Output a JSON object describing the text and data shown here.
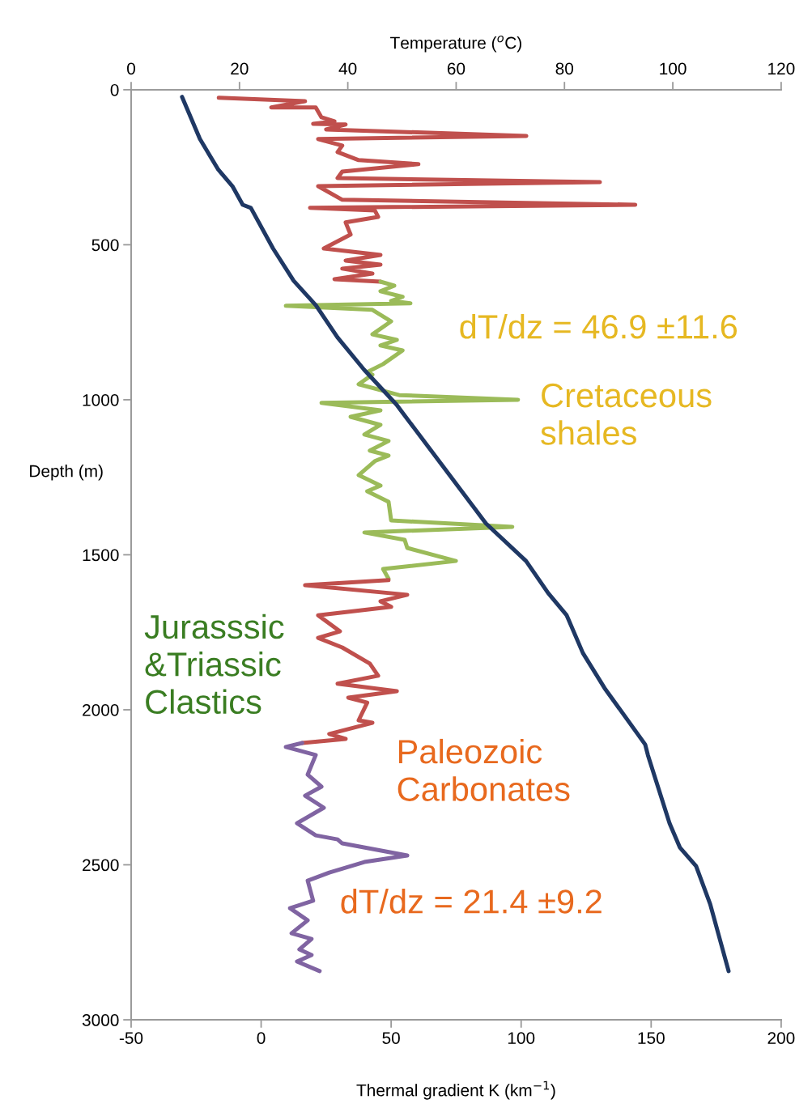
{
  "chart_data": {
    "type": "line",
    "xlabel": "Thermal gradient K (km$^{−1}$)",
    "x2label": "Temperature ($^{o}$C)",
    "ylabel": "Depth (m)",
    "xlim": [
      -50,
      200
    ],
    "xticks": [
      -50,
      0,
      50,
      100,
      150,
      200
    ],
    "x2lim": [
      0,
      120
    ],
    "x2ticks": [
      0,
      20,
      40,
      60,
      80,
      100,
      120
    ],
    "ylim": [
      3000,
      0
    ],
    "yticks": [
      0,
      500,
      1000,
      1500,
      2000,
      2500,
      3000
    ],
    "grid": false,
    "legend": false,
    "marker": "none",
    "line_style": "solid",
    "series": [
      {
        "axis": "x2",
        "color": "#1f3864",
        "x": [
          9.4,
          12.7,
          16.1,
          18.7,
          20.6,
          22.1,
          26.2,
          30.0,
          34.1,
          38.1,
          43.0,
          49.0,
          58.0,
          65.5,
          72.9,
          77.0,
          80.4,
          83.4,
          87.4,
          94.9,
          95.4,
          99.4,
          101.3,
          104.3,
          106.9,
          110.3
        ],
        "values": [
          23,
          159,
          258,
          311,
          371,
          381,
          512,
          616,
          695,
          799,
          903,
          1016,
          1225,
          1399,
          1520,
          1624,
          1695,
          1817,
          1930,
          2112,
          2146,
          2366,
          2444,
          2504,
          2627,
          2843
        ]
      },
      {
        "color": "#c0504d",
        "x": [
          -16.3,
          16.9,
          3.9,
          21.0,
          23.2,
          28.2,
          20.0,
          32.5,
          25.0,
          102.0,
          21.9,
          31.2,
          29.4,
          37.5,
          60.5,
          31.2,
          29.4,
          130.3,
          21.9,
          31.2,
          143.9,
          18.8,
          43.7,
          45.0,
          32.5,
          34.4,
          24.1,
          45.9,
          32.5,
          45.9,
          31.2,
          42.8,
          28.2,
          45.9
        ],
        "values": [
          26,
          37,
          57,
          57,
          89,
          102,
          110,
          112,
          128,
          149,
          159,
          180,
          201,
          227,
          240,
          264,
          285,
          298,
          311,
          355,
          371,
          381,
          389,
          410,
          428,
          467,
          512,
          533,
          551,
          564,
          577,
          593,
          611,
          619
        ]
      },
      {
        "color": "#9bbb59",
        "x": [
          45.9,
          51.2,
          45.9,
          54.4,
          50.0,
          57.4,
          9.5,
          42.8,
          50.0,
          42.8,
          52.2,
          45.9,
          54.4,
          46.9,
          40.8,
          42.8,
          37.5,
          53.1,
          98.8,
          23.2,
          45.9,
          34.4,
          45.9,
          39.7,
          49.0,
          41.8,
          49.0,
          43.7,
          37.5,
          45.9,
          40.8,
          49.0,
          50.0,
          96.6,
          39.7,
          55.2,
          56.2,
          74.9,
          46.9,
          49.0
        ],
        "values": [
          619,
          632,
          650,
          668,
          681,
          689,
          697,
          710,
          747,
          789,
          807,
          825,
          841,
          885,
          911,
          919,
          950,
          985,
          1000,
          1010,
          1034,
          1055,
          1081,
          1112,
          1133,
          1164,
          1180,
          1198,
          1243,
          1277,
          1295,
          1329,
          1389,
          1410,
          1428,
          1452,
          1478,
          1520,
          1546,
          1577
        ]
      },
      {
        "color": "#c0504d",
        "x": [
          49.0,
          16.9,
          56.2,
          45.9,
          50.0,
          21.9,
          30.3,
          21.9,
          31.2,
          41.8,
          45.0,
          29.4,
          52.2,
          33.5,
          40.8,
          37.5,
          42.8,
          26.2,
          32.5,
          15.8
        ],
        "values": [
          1582,
          1598,
          1629,
          1650,
          1668,
          1695,
          1747,
          1768,
          1799,
          1851,
          1890,
          1916,
          1940,
          1961,
          1977,
          2034,
          2042,
          2078,
          2094,
          2107
        ]
      },
      {
        "color": "#8064a2",
        "x": [
          15.8,
          9.5,
          21.0,
          17.9,
          23.2,
          16.9,
          24.1,
          13.8,
          21.0,
          29.4,
          31.2,
          56.2,
          39.7,
          26.2,
          17.9,
          20.0,
          11.1,
          17.9,
          11.7,
          19.4,
          14.7,
          19.4,
          13.8,
          22.5
        ],
        "values": [
          2107,
          2120,
          2146,
          2209,
          2248,
          2277,
          2316,
          2366,
          2405,
          2418,
          2431,
          2470,
          2491,
          2525,
          2551,
          2616,
          2640,
          2679,
          2721,
          2739,
          2773,
          2791,
          2812,
          2843
        ]
      }
    ],
    "annotations": [
      "dT/dz = 46.9 ±11.6",
      "Cretaceous\nshales",
      "Jurasssic\n&Triassic\nClastics",
      "Paleozoic\nCarbonates",
      "dT/dz = 21.4 ±9.2"
    ]
  }
}
